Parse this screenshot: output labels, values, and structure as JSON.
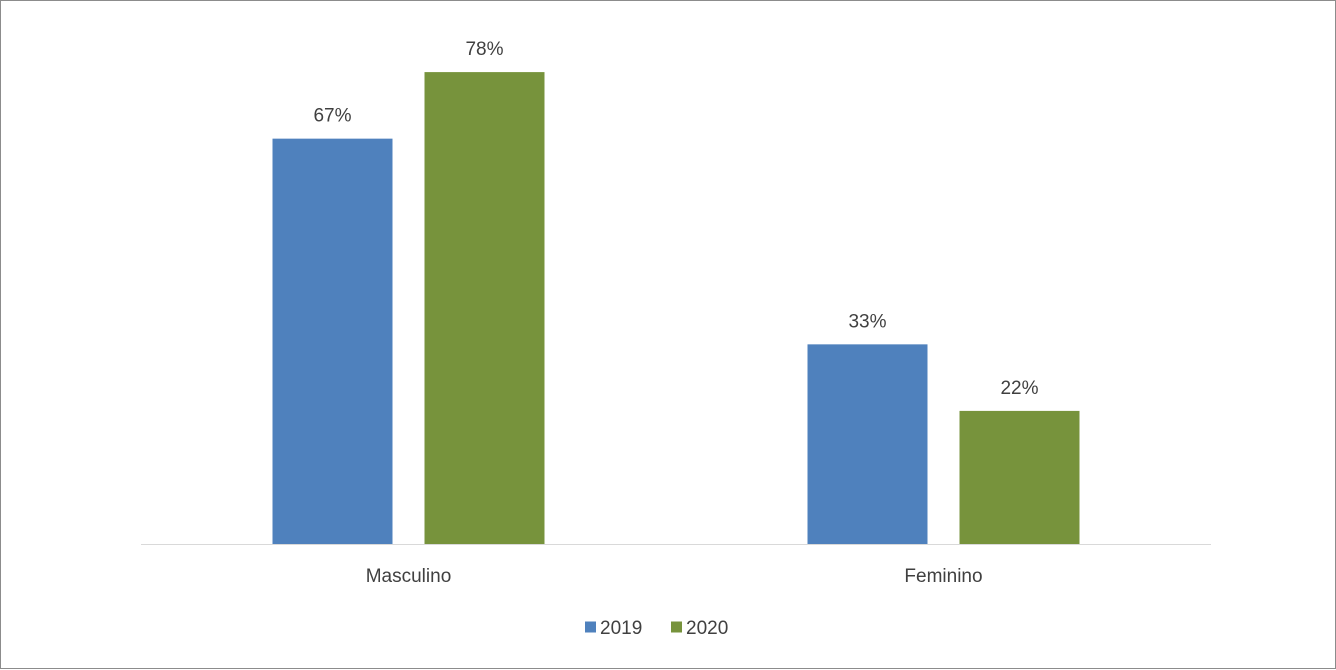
{
  "chart_data": {
    "type": "bar",
    "categories": [
      "Masculino",
      "Feminino"
    ],
    "series": [
      {
        "name": "2019",
        "values": [
          67,
          33
        ],
        "labels": [
          "67%",
          "33%"
        ],
        "color": "#4f81bd"
      },
      {
        "name": "2020",
        "values": [
          78,
          22
        ],
        "labels": [
          "78%",
          "22%"
        ],
        "color": "#77933c"
      }
    ],
    "title": "",
    "xlabel": "",
    "ylabel": "",
    "ylim": [
      0,
      100
    ],
    "unit": "%",
    "grid": false,
    "legend": "bottom",
    "axis_color": "#d9d9d9"
  }
}
